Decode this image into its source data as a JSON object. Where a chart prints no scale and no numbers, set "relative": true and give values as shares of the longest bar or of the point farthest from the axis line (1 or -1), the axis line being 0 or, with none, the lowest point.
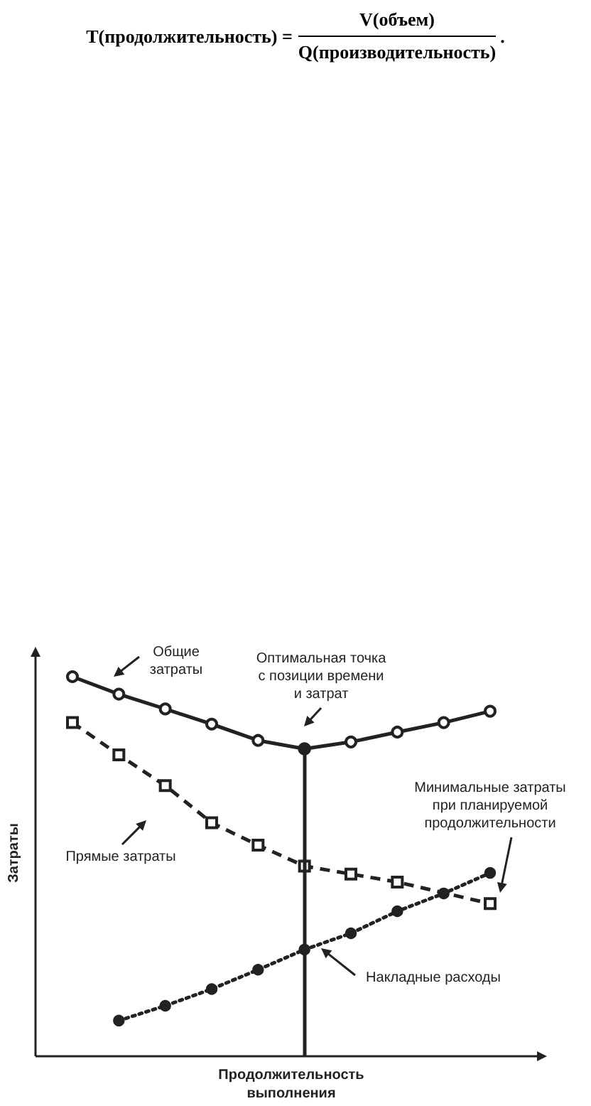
{
  "chart_data": {
    "type": "line",
    "relative": true,
    "xlabel": "Продолжительность\nвыполнения",
    "ylabel": "Затраты",
    "grid": false,
    "categories": [
      null,
      null,
      null,
      null,
      null,
      null,
      null,
      null,
      null,
      null
    ],
    "series": [
      {
        "color": "#222222",
        "marker": "circle",
        "line_style": "solid",
        "values": [
          1.0,
          0.954,
          0.915,
          0.875,
          0.832,
          0.81,
          0.828,
          0.854,
          0.879,
          0.909
        ]
      },
      {
        "color": "#222222",
        "marker": "square",
        "line_style": "dashed",
        "values": [
          0.879,
          0.794,
          0.713,
          0.615,
          0.556,
          0.501,
          0.48,
          0.459,
          null,
          0.402
        ]
      },
      {
        "color": "#222222",
        "marker": "circle",
        "line_style": "dotted",
        "values": [
          null,
          0.094,
          0.133,
          0.177,
          0.228,
          0.281,
          0.324,
          0.382,
          0.429,
          0.483
        ]
      }
    ],
    "annotations": [
      "T(продолжительность) =",
      "V(объем)",
      "Q(производительность)",
      ".",
      "Общие\nзатраты",
      "Оптимальная точка\nс позиции времени\nи затрат",
      "Минимальные затраты\nпри планируемой\nпродолжительности",
      "Прямые затраты",
      "Накладные расходы"
    ]
  }
}
